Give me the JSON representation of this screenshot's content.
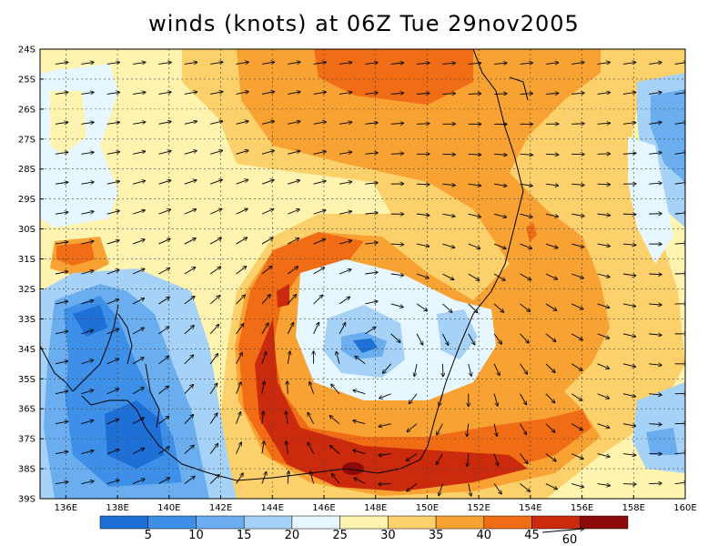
{
  "title": "winds (knots) at 06Z Tue 29nov2005",
  "lat_labels": [
    "24S",
    "25S",
    "26S",
    "27S",
    "28S",
    "29S",
    "30S",
    "31S",
    "32S",
    "33S",
    "34S",
    "35S",
    "36S",
    "37S",
    "38S",
    "39S"
  ],
  "lon_labels": [
    "136E",
    "138E",
    "140E",
    "142E",
    "144E",
    "146E",
    "148E",
    "150E",
    "152E",
    "154E",
    "156E",
    "158E",
    "160E"
  ],
  "colorbar": {
    "colors": [
      "#1e6fd6",
      "#3d8fe8",
      "#6aaef0",
      "#a6d2f7",
      "#e6f7ff",
      "#fff3b0",
      "#fcd16b",
      "#f7a233",
      "#f06d16",
      "#cc2a0c",
      "#8e0a0a"
    ],
    "labels": [
      "5",
      "10",
      "15",
      "20",
      "25",
      "30",
      "35",
      "40",
      "45"
    ]
  },
  "reference_vector": {
    "label": "60"
  },
  "chart_data": {
    "type": "heatmap",
    "title": "winds (knots) at 06Z Tue 29nov2005",
    "x_range": [
      135,
      160
    ],
    "y_range": [
      -39,
      -24
    ],
    "contour_levels": [
      5,
      10,
      15,
      20,
      25,
      30,
      35,
      40,
      45
    ],
    "features": [
      {
        "kind": "high-speed-band",
        "min_knots": 35,
        "description_label": "curved band 144E-154E, 30S-39S"
      },
      {
        "kind": "low-speed-center",
        "max_knots": 10,
        "lon": 148,
        "lat": -34
      }
    ]
  }
}
